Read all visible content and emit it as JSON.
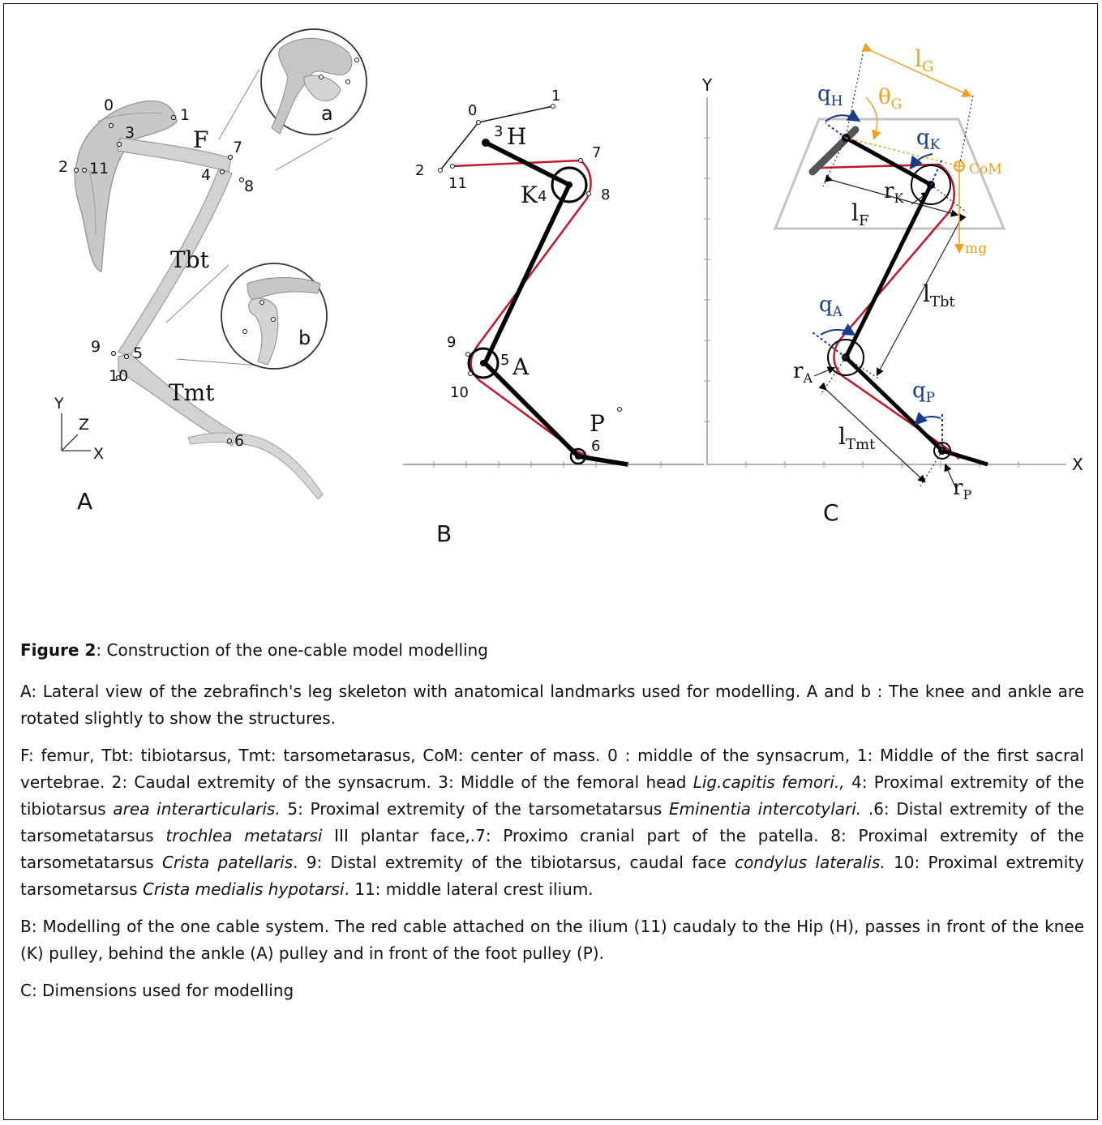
{
  "panels": {
    "A": {
      "label": "A",
      "bone_labels": {
        "femur": "F",
        "tibiotarsus": "Tbt",
        "tarsometatarsus": "Tmt"
      },
      "landmarks": [
        "0",
        "1",
        "2",
        "11",
        "3",
        "7",
        "4",
        "8",
        "9",
        "5",
        "10",
        "6"
      ],
      "inset_labels": {
        "knee": "a",
        "ankle": "b"
      },
      "axes": {
        "y": "Y",
        "z": "Z",
        "x": "X"
      }
    },
    "B": {
      "label": "B",
      "landmarks": [
        "0",
        "1",
        "3",
        "7",
        "2",
        "11",
        "4",
        "8",
        "9",
        "5",
        "10",
        "6"
      ],
      "joints": {
        "hip": "H",
        "knee": "K",
        "ankle": "A",
        "foot": "P"
      }
    },
    "C": {
      "label": "C",
      "axis_y": "Y",
      "axis_x": "X",
      "angles": {
        "qH": "H",
        "qK": "K",
        "qA": "A",
        "qP": "P",
        "theta": "G"
      },
      "lengths": {
        "lG": "G",
        "lF": "F",
        "lTbt": "Tbt",
        "lTmt": "Tmt"
      },
      "radii": {
        "rK": "K",
        "rA": "A",
        "rP": "P"
      },
      "com": "CoM",
      "weight": "mg"
    }
  },
  "colors": {
    "cable": "#c0182a",
    "angle": "#1a3a8a",
    "com": "#f0a020",
    "bone": "#000000",
    "axis": "#888888"
  },
  "caption": {
    "title_bold": "Figure 2",
    "title_rest": ": Construction of the one-cable model modelling",
    "para_a": " A: Lateral view of the zebrafinch's leg skeleton with anatomical landmarks used for modelling. A and b : The knee and ankle are rotated slightly to show the structures.",
    "legend": {
      "s1": " F: femur, Tbt: tibiotarsus, Tmt: tarsometarasus, CoM: center of mass. 0 : middle of the synsacrum, 1: Middle of the first sacral vertebrae. 2: Caudal extremity of the synsacrum. 3: Middle of the femoral head ",
      "i1": "Lig.capitis femori.,",
      "s2": " 4: Proximal extremity of the tibiotarsus ",
      "i2": "area interarticularis.",
      "s3": " 5: Proximal extremity of the tarsometatarsus ",
      "i3": "Eminentia intercotylari.",
      "s4": " .6: Distal extremity of the tarsometatarsus ",
      "i4": "trochlea metatarsi",
      "s5": " III plantar face,.7: Proximo cranial part of the patella. 8: Proximal extremity of the tarsometatarsus ",
      "i5": "Crista patellaris",
      "s6": ". 9: Distal extremity of the tibiotarsus, caudal face ",
      "i6": "condylus lateralis.",
      "s7": "  10: Proximal extremity tarsometarsus ",
      "i7": "Crista medialis hypotarsi",
      "s8": ". 11: middle lateral crest ilium."
    },
    "para_b": "B: Modelling of the one cable system. The red cable attached on  the ilium (11) caudaly to the Hip (H), passes in front of the knee (K) pulley, behind the ankle (A) pulley and in front of the foot pulley (P).",
    "para_c": "C: Dimensions used for modelling"
  }
}
